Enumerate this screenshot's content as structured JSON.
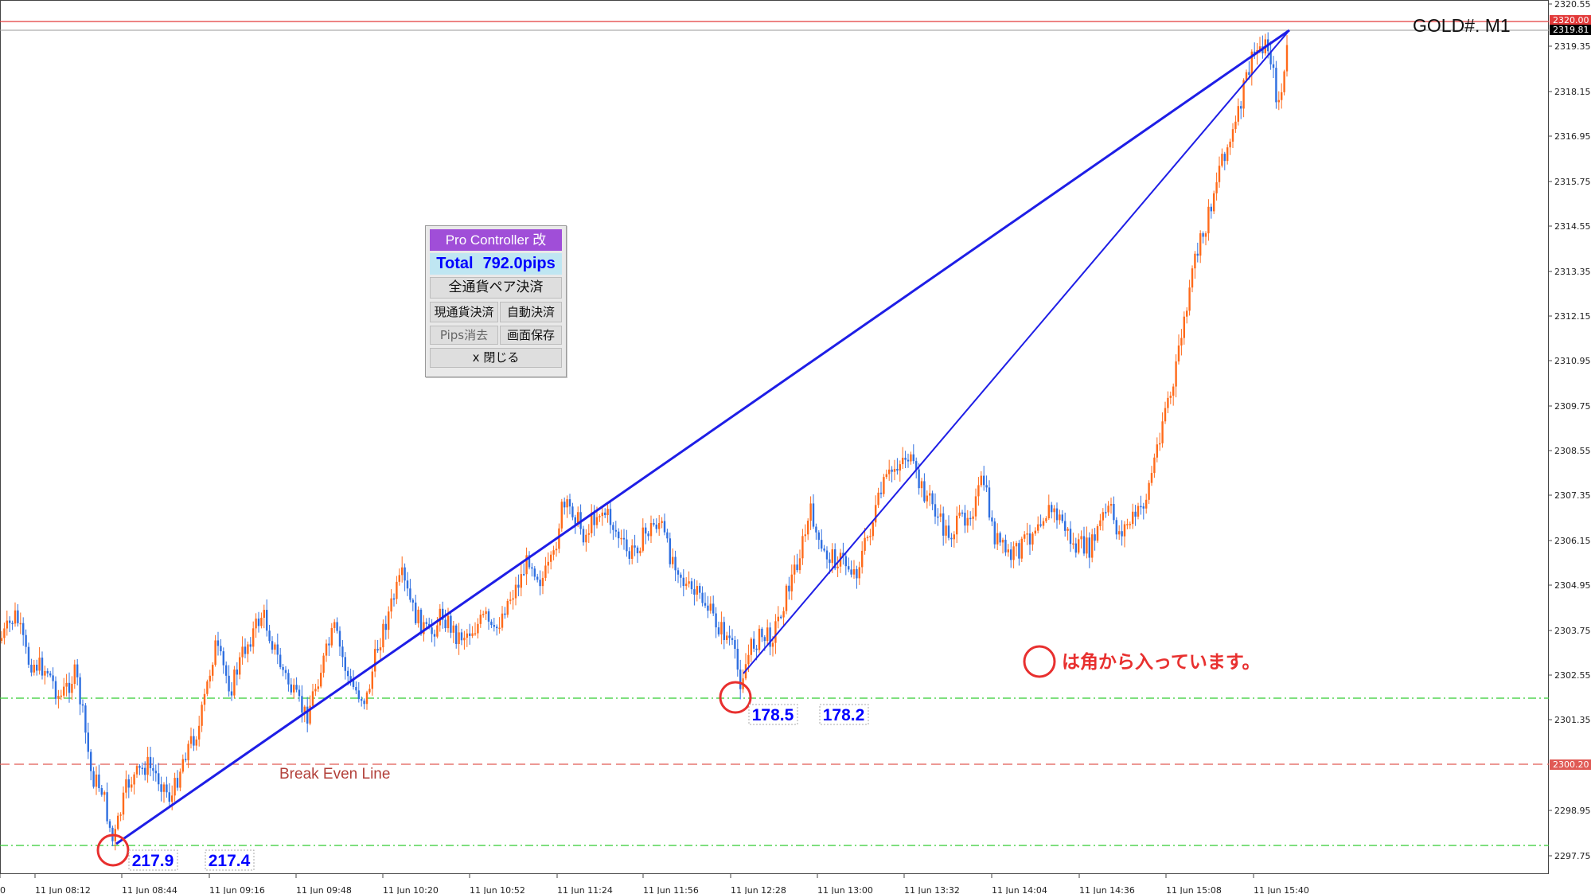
{
  "symbol_label": "GOLD#. M1",
  "price_axis": {
    "labels": [
      "2320.55",
      "2319.35",
      "2318.15",
      "2316.95",
      "2315.75",
      "2314.55",
      "2313.35",
      "2312.15",
      "2310.95",
      "2309.75",
      "2308.55",
      "2307.35",
      "2306.15",
      "2304.95",
      "2303.75",
      "2302.55",
      "2301.35",
      "2298.95",
      "2297.75"
    ],
    "current_price_tag": "2319.81",
    "red_line_tag": "2320.00",
    "break_even_tag": "2300.20"
  },
  "time_axis": {
    "labels": [
      "0",
      "11 Jun 08:12",
      "11 Jun 08:44",
      "11 Jun 09:16",
      "11 Jun 09:48",
      "11 Jun 10:20",
      "11 Jun 10:52",
      "11 Jun 11:24",
      "11 Jun 11:56",
      "11 Jun 12:28",
      "11 Jun 13:00",
      "11 Jun 13:32",
      "11 Jun 14:04",
      "11 Jun 14:36",
      "11 Jun 15:08",
      "11 Jun 15:40"
    ]
  },
  "break_even_label": "Break Even Line",
  "pip_labels": [
    "217.9",
    "217.4",
    "178.5",
    "178.2"
  ],
  "note": "は角から入っています。",
  "panel": {
    "title": "Pro Controller 改",
    "total_label": "Total",
    "total_value": "792.0pips",
    "close_all_pairs": "全通貨ペア決済",
    "close_current": "現通貨決済",
    "auto_close": "自動決済",
    "clear_pips": "Pips消去",
    "save_screen": "画面保存",
    "close": "x 閉じる"
  },
  "colors": {
    "bull_candle": "#ff6a1a",
    "bear_candle": "#2f6fe0",
    "trend_line": "#1e1ee6",
    "break_even": "#e05a55",
    "green_level": "#33cc33",
    "red_circle": "#e8302f"
  }
}
